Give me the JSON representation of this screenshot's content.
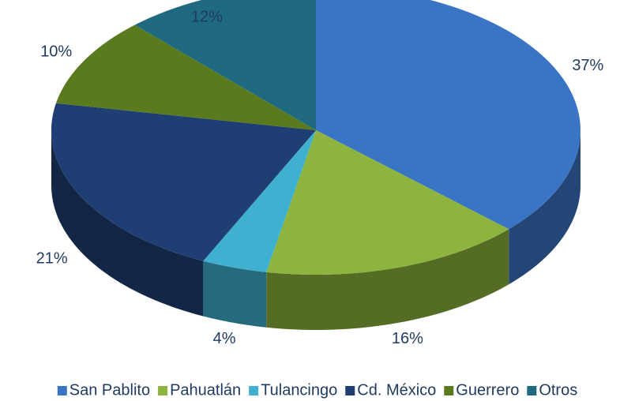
{
  "chart_data": {
    "type": "pie3d",
    "categories": [
      "San Pablito",
      "Pahuatlán",
      "Tulancingo",
      "Cd. México",
      "Guerrero",
      "Otros"
    ],
    "values": [
      37,
      16,
      4,
      21,
      10,
      12
    ],
    "value_labels": [
      "37%",
      "16%",
      "4%",
      "21%",
      "10%",
      "12%"
    ],
    "colors": [
      "#3a74c4",
      "#8db43e",
      "#3fb0d0",
      "#1f3f74",
      "#5a7a1e",
      "#1f6a80"
    ],
    "legend": "bottom"
  }
}
